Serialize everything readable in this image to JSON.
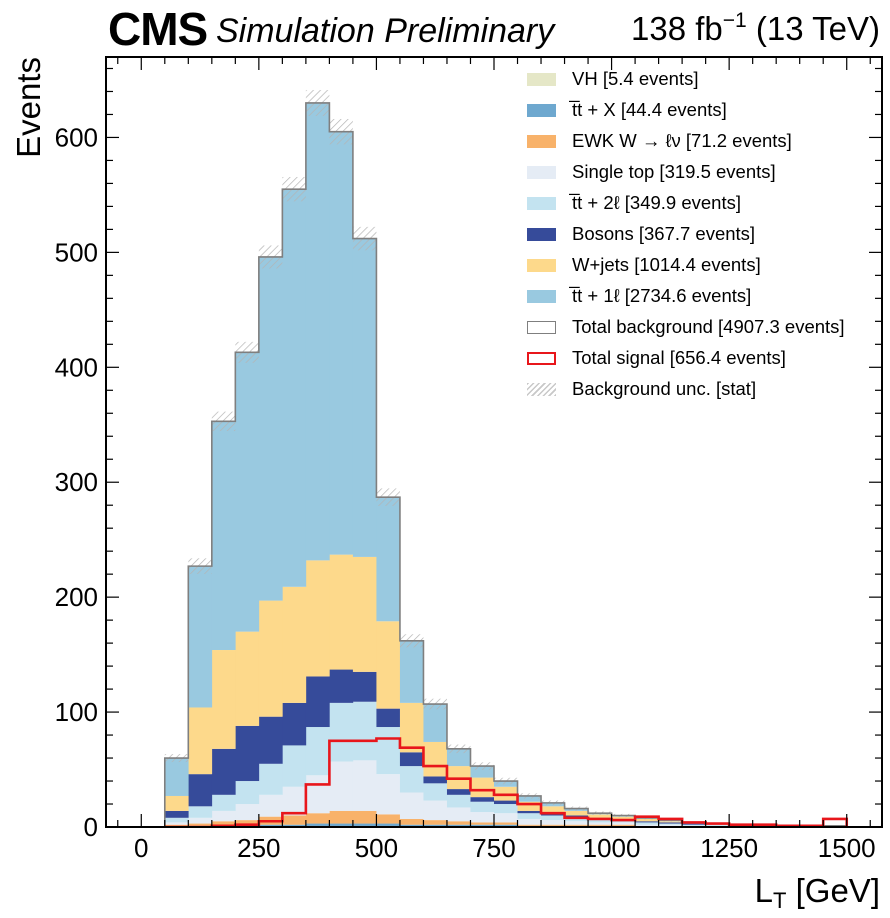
{
  "header": {
    "experiment": "CMS",
    "status": "Simulation Preliminary",
    "lumi": "138 fb",
    "lumi_exp": "−1",
    "energy": " (13 TeV)"
  },
  "chart_data": {
    "type": "histogram-stacked",
    "xlabel": "L",
    "xlabel_sub": "T",
    "xlabel_unit": " [GeV]",
    "ylabel": "Events",
    "xlim": [
      -75,
      1575
    ],
    "ylim": [
      0,
      670
    ],
    "xticks": [
      0,
      250,
      500,
      750,
      1000,
      1250,
      1500
    ],
    "yticks": [
      0,
      100,
      200,
      300,
      400,
      500,
      600
    ],
    "bin_edges": [
      50,
      100,
      150,
      200,
      250,
      300,
      350,
      400,
      450,
      500,
      550,
      600,
      650,
      700,
      750,
      800,
      850,
      900,
      950,
      1000,
      1050,
      1100,
      1150,
      1200,
      1250,
      1300,
      1350,
      1400,
      1450,
      1500
    ],
    "stack_order_bottom_to_top": [
      "ttX",
      "ewk",
      "singletop",
      "tt2l",
      "bosons",
      "wjets",
      "tt1l",
      "vh"
    ],
    "series": [
      {
        "key": "vh",
        "name": "VH [5.4 events]",
        "color": "#e5e7c7",
        "values": [
          0,
          0,
          0,
          0,
          0,
          0,
          0,
          0,
          0,
          0,
          0,
          0,
          0,
          0,
          0,
          0,
          0,
          0,
          0,
          0,
          0,
          0,
          0,
          0,
          0,
          0,
          0,
          0,
          0
        ]
      },
      {
        "key": "ttX",
        "name": "t̅t + X [44.4 events]",
        "color": "#6ea8cf",
        "values": [
          1,
          1,
          1,
          1,
          2,
          2,
          3,
          3,
          3,
          3,
          2,
          2,
          2,
          2,
          2,
          1,
          1,
          1,
          1,
          1,
          1,
          1,
          0,
          0,
          0,
          0,
          0,
          0,
          0
        ]
      },
      {
        "key": "ewk",
        "name": "EWK W → ℓν [71.2 events]",
        "color": "#f8b26a",
        "values": [
          1,
          2,
          4,
          5,
          7,
          8,
          9,
          11,
          11,
          8,
          5,
          4,
          3,
          2,
          2,
          1,
          1,
          1,
          1,
          1,
          0,
          0,
          0,
          0,
          0,
          0,
          0,
          0,
          0
        ]
      },
      {
        "key": "singletop",
        "name": "Single top [319.5 events]",
        "color": "#e5ecf5",
        "values": [
          2,
          5,
          9,
          14,
          19,
          25,
          33,
          43,
          44,
          35,
          23,
          17,
          12,
          9,
          8,
          5,
          4,
          3,
          2,
          2,
          1,
          1,
          1,
          1,
          0,
          0,
          0,
          0,
          0
        ]
      },
      {
        "key": "tt2l",
        "name": "t̅t + 2ℓ [349.9 events]",
        "color": "#c3e3f0",
        "values": [
          4,
          10,
          14,
          20,
          27,
          36,
          42,
          51,
          51,
          41,
          23,
          15,
          11,
          9,
          8,
          5,
          4,
          4,
          3,
          2,
          2,
          1,
          1,
          1,
          1,
          0,
          0,
          0,
          0
        ]
      },
      {
        "key": "bosons",
        "name": "Bosons [367.7 events]",
        "color": "#364b9a",
        "values": [
          6,
          28,
          40,
          48,
          41,
          37,
          44,
          29,
          26,
          16,
          12,
          6,
          5,
          4,
          3,
          2,
          2,
          1,
          1,
          1,
          1,
          1,
          1,
          0,
          0,
          0,
          0,
          0,
          0
        ]
      },
      {
        "key": "wjets",
        "name": "W+jets [1014.4 events]",
        "color": "#fdd98b",
        "values": [
          13,
          58,
          86,
          82,
          101,
          101,
          101,
          100,
          100,
          76,
          43,
          30,
          20,
          17,
          12,
          8,
          6,
          4,
          3,
          2,
          2,
          1,
          1,
          1,
          1,
          0,
          0,
          0,
          0
        ]
      },
      {
        "key": "tt1l",
        "name": "t̅t + 1ℓ [2734.6 events]",
        "color": "#99c9e0",
        "values": [
          33,
          123,
          199,
          243,
          299,
          346,
          398,
          368,
          277,
          108,
          54,
          33,
          15,
          10,
          5,
          5,
          3,
          2,
          1,
          1,
          1,
          1,
          0,
          0,
          0,
          0,
          0,
          0,
          0
        ]
      }
    ],
    "total_background": {
      "name": "Total background [4907.3 events]",
      "color": "#7f7f7f",
      "values": [
        60,
        227,
        353,
        413,
        496,
        555,
        630,
        605,
        512,
        287,
        162,
        107,
        68,
        53,
        40,
        27,
        21,
        16,
        12,
        10,
        8,
        6,
        4,
        3,
        2,
        1,
        1,
        1,
        1
      ]
    },
    "total_signal": {
      "name": "Total signal [656.4 events]",
      "color": "#e8161b",
      "values": [
        0,
        0,
        1,
        2,
        5,
        12,
        37,
        75,
        75,
        77,
        69,
        53,
        42,
        32,
        28,
        20,
        12,
        8,
        7,
        6,
        9,
        7,
        4,
        3,
        2,
        2,
        1,
        1,
        7
      ]
    },
    "uncertainty": {
      "name": "Background unc. [stat]",
      "color": "#c8c8c8"
    }
  }
}
